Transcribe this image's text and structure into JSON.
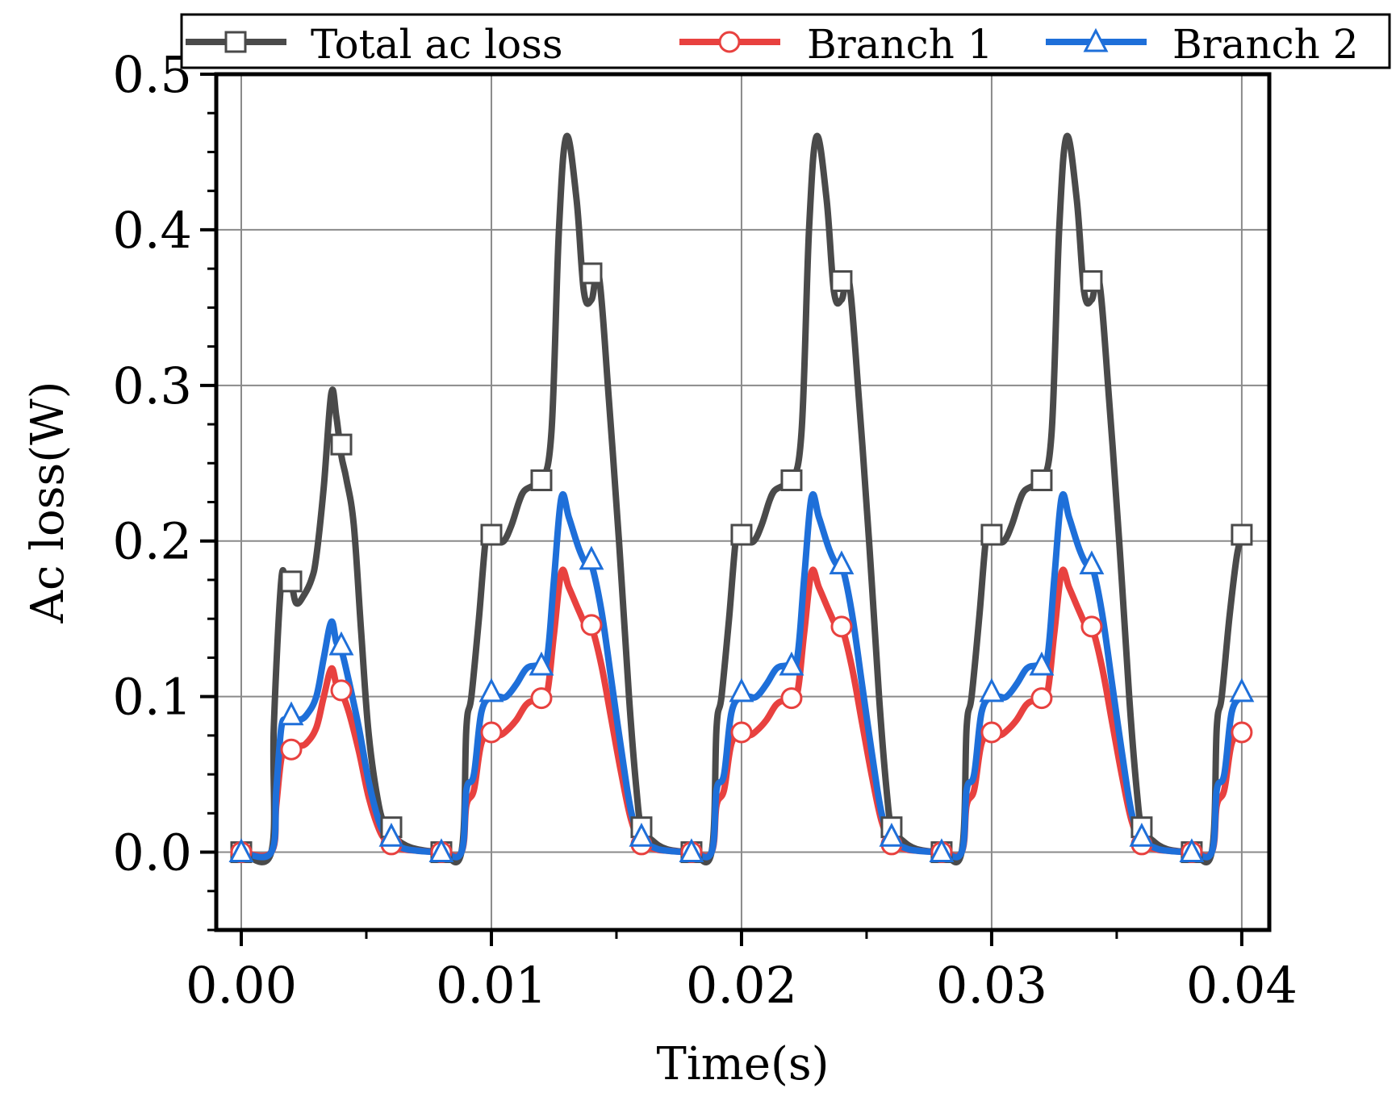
{
  "chart_data": {
    "type": "line",
    "title": "",
    "xlabel": "Time(s)",
    "ylabel": "Ac loss(W)",
    "xlim": [
      -0.001,
      0.0411
    ],
    "ylim": [
      -0.05,
      0.5
    ],
    "x_ticks": [
      0.0,
      0.01,
      0.02,
      0.03,
      0.04
    ],
    "x_tick_labels": [
      "0.00",
      "0.01",
      "0.02",
      "0.03",
      "0.04"
    ],
    "y_ticks": [
      0.0,
      0.1,
      0.2,
      0.3,
      0.4,
      0.5
    ],
    "y_tick_labels": [
      "0.0",
      "0.1",
      "0.2",
      "0.3",
      "0.4",
      "0.5"
    ],
    "grid": true,
    "legend_position": "top (above plot, one row)",
    "series": [
      {
        "name": "Total ac loss",
        "color": "#4a4a4a",
        "marker": "square",
        "x": [
          0.0,
          0.0012,
          0.0013,
          0.0016,
          0.0018,
          0.002,
          0.0022,
          0.0025,
          0.0028,
          0.003,
          0.0033,
          0.0036,
          0.0038,
          0.004,
          0.0042,
          0.0045,
          0.0048,
          0.0051,
          0.0055,
          0.0058,
          0.006,
          0.0064,
          0.007,
          0.008,
          0.0088,
          0.009,
          0.0092,
          0.0095,
          0.0098,
          0.01,
          0.0102,
          0.0105,
          0.0108,
          0.0111,
          0.0113,
          0.0116,
          0.012,
          0.0124,
          0.0127,
          0.013,
          0.0134,
          0.0137,
          0.014,
          0.0143,
          0.0147,
          0.0151,
          0.0155,
          0.0158,
          0.016,
          0.0164,
          0.017,
          0.018,
          0.0188,
          0.019,
          0.0192,
          0.0195,
          0.0198,
          0.02,
          0.0202,
          0.0205,
          0.0208,
          0.0211,
          0.0213,
          0.0216,
          0.022,
          0.0224,
          0.0227,
          0.023,
          0.0234,
          0.0237,
          0.024,
          0.0243,
          0.0247,
          0.0251,
          0.0255,
          0.0258,
          0.026,
          0.0264,
          0.027,
          0.028,
          0.0288,
          0.029,
          0.0292,
          0.0295,
          0.0298,
          0.03,
          0.0302,
          0.0305,
          0.0308,
          0.0311,
          0.0313,
          0.0316,
          0.032,
          0.0324,
          0.0327,
          0.033,
          0.0334,
          0.0337,
          0.034,
          0.0343,
          0.0347,
          0.0351,
          0.0355,
          0.0358,
          0.036,
          0.0364,
          0.037,
          0.038,
          0.0388,
          0.039,
          0.0392,
          0.0395,
          0.0398,
          0.04
        ],
        "y": [
          0.0,
          0.0,
          0.08,
          0.175,
          0.17,
          0.172,
          0.16,
          0.165,
          0.175,
          0.19,
          0.235,
          0.295,
          0.28,
          0.255,
          0.24,
          0.21,
          0.14,
          0.075,
          0.03,
          0.016,
          0.012,
          0.006,
          0.002,
          0.0,
          0.0,
          0.08,
          0.1,
          0.15,
          0.205,
          0.203,
          0.2,
          0.2,
          0.21,
          0.225,
          0.232,
          0.235,
          0.238,
          0.27,
          0.4,
          0.46,
          0.42,
          0.36,
          0.355,
          0.37,
          0.29,
          0.2,
          0.1,
          0.04,
          0.016,
          0.008,
          0.002,
          0.0,
          0.0,
          0.08,
          0.1,
          0.15,
          0.205,
          0.203,
          0.2,
          0.2,
          0.21,
          0.225,
          0.232,
          0.235,
          0.238,
          0.27,
          0.4,
          0.46,
          0.42,
          0.36,
          0.355,
          0.367,
          0.29,
          0.2,
          0.1,
          0.04,
          0.016,
          0.008,
          0.002,
          0.0,
          0.0,
          0.08,
          0.1,
          0.15,
          0.205,
          0.203,
          0.2,
          0.2,
          0.21,
          0.225,
          0.232,
          0.235,
          0.238,
          0.27,
          0.4,
          0.46,
          0.42,
          0.36,
          0.355,
          0.367,
          0.29,
          0.2,
          0.1,
          0.04,
          0.016,
          0.008,
          0.002,
          0.0,
          0.0,
          0.08,
          0.1,
          0.15,
          0.19,
          0.203
        ],
        "marker_x": [
          0.0,
          0.002,
          0.004,
          0.006,
          0.008,
          0.01,
          0.012,
          0.014,
          0.016,
          0.018,
          0.02,
          0.022,
          0.024,
          0.026,
          0.028,
          0.03,
          0.032,
          0.034,
          0.036,
          0.038,
          0.04
        ],
        "marker_y": [
          0.0,
          0.174,
          0.262,
          0.016,
          0.0,
          0.204,
          0.239,
          0.372,
          0.016,
          0.0,
          0.204,
          0.239,
          0.367,
          0.016,
          0.0,
          0.204,
          0.239,
          0.367,
          0.016,
          0.0,
          0.204
        ]
      },
      {
        "name": "Branch 1",
        "color": "#e8413f",
        "marker": "circle",
        "x": [
          0.0,
          0.0012,
          0.0014,
          0.0016,
          0.0018,
          0.002,
          0.0023,
          0.0026,
          0.003,
          0.0033,
          0.0036,
          0.0038,
          0.004,
          0.0043,
          0.0047,
          0.0051,
          0.0055,
          0.0058,
          0.006,
          0.0064,
          0.007,
          0.008,
          0.0088,
          0.009,
          0.0093,
          0.0096,
          0.01,
          0.0103,
          0.0106,
          0.011,
          0.0114,
          0.0118,
          0.0122,
          0.0125,
          0.0128,
          0.0131,
          0.0135,
          0.0138,
          0.014,
          0.0144,
          0.0148,
          0.0152,
          0.0156,
          0.016,
          0.0165,
          0.017,
          0.018,
          0.0188,
          0.019,
          0.0193,
          0.0196,
          0.02,
          0.0203,
          0.0206,
          0.021,
          0.0214,
          0.0218,
          0.0222,
          0.0225,
          0.0228,
          0.0231,
          0.0235,
          0.0238,
          0.024,
          0.0244,
          0.0248,
          0.0252,
          0.0256,
          0.026,
          0.0265,
          0.027,
          0.028,
          0.0288,
          0.029,
          0.0293,
          0.0296,
          0.03,
          0.0303,
          0.0306,
          0.031,
          0.0314,
          0.0318,
          0.0322,
          0.0325,
          0.0328,
          0.0331,
          0.0335,
          0.0338,
          0.034,
          0.0344,
          0.0348,
          0.0352,
          0.0356,
          0.036,
          0.0365,
          0.037,
          0.038,
          0.0388,
          0.039,
          0.0393,
          0.0396,
          0.04
        ],
        "y": [
          0.0,
          0.0,
          0.03,
          0.06,
          0.065,
          0.065,
          0.068,
          0.07,
          0.08,
          0.1,
          0.118,
          0.108,
          0.103,
          0.09,
          0.065,
          0.035,
          0.015,
          0.007,
          0.005,
          0.002,
          0.001,
          0.0,
          0.0,
          0.03,
          0.04,
          0.07,
          0.077,
          0.075,
          0.078,
          0.085,
          0.095,
          0.098,
          0.1,
          0.14,
          0.18,
          0.17,
          0.155,
          0.145,
          0.145,
          0.12,
          0.085,
          0.05,
          0.02,
          0.006,
          0.002,
          0.001,
          0.0,
          0.0,
          0.03,
          0.04,
          0.07,
          0.077,
          0.075,
          0.078,
          0.085,
          0.095,
          0.098,
          0.1,
          0.14,
          0.18,
          0.17,
          0.155,
          0.145,
          0.145,
          0.12,
          0.085,
          0.05,
          0.02,
          0.006,
          0.002,
          0.001,
          0.0,
          0.0,
          0.03,
          0.04,
          0.07,
          0.077,
          0.075,
          0.078,
          0.085,
          0.095,
          0.098,
          0.1,
          0.14,
          0.18,
          0.17,
          0.155,
          0.145,
          0.145,
          0.12,
          0.085,
          0.05,
          0.02,
          0.006,
          0.002,
          0.001,
          0.0,
          0.0,
          0.03,
          0.04,
          0.07,
          0.077
        ],
        "marker_x": [
          0.0,
          0.002,
          0.004,
          0.006,
          0.008,
          0.01,
          0.012,
          0.014,
          0.016,
          0.018,
          0.02,
          0.022,
          0.024,
          0.026,
          0.028,
          0.03,
          0.032,
          0.034,
          0.036,
          0.038,
          0.04
        ],
        "marker_y": [
          0.0,
          0.066,
          0.104,
          0.005,
          0.0,
          0.077,
          0.099,
          0.146,
          0.005,
          0.0,
          0.077,
          0.099,
          0.145,
          0.005,
          0.0,
          0.077,
          0.099,
          0.145,
          0.005,
          0.0,
          0.077
        ]
      },
      {
        "name": "Branch 2",
        "color": "#1e6fd9",
        "marker": "triangle",
        "x": [
          0.0,
          0.0012,
          0.0014,
          0.0016,
          0.0018,
          0.002,
          0.0023,
          0.0026,
          0.003,
          0.0033,
          0.0036,
          0.0038,
          0.004,
          0.0043,
          0.0047,
          0.0051,
          0.0055,
          0.0058,
          0.006,
          0.0064,
          0.007,
          0.008,
          0.0088,
          0.009,
          0.0093,
          0.0096,
          0.01,
          0.0103,
          0.0106,
          0.011,
          0.0114,
          0.0118,
          0.0122,
          0.0125,
          0.0128,
          0.0131,
          0.0135,
          0.0138,
          0.014,
          0.0144,
          0.0148,
          0.0152,
          0.0156,
          0.016,
          0.0165,
          0.017,
          0.018,
          0.0188,
          0.019,
          0.0193,
          0.0196,
          0.02,
          0.0203,
          0.0206,
          0.021,
          0.0214,
          0.0218,
          0.0222,
          0.0225,
          0.0228,
          0.0231,
          0.0235,
          0.0238,
          0.024,
          0.0244,
          0.0248,
          0.0252,
          0.0256,
          0.026,
          0.0265,
          0.027,
          0.028,
          0.0288,
          0.029,
          0.0293,
          0.0296,
          0.03,
          0.0303,
          0.0306,
          0.031,
          0.0314,
          0.0318,
          0.0322,
          0.0325,
          0.0328,
          0.0331,
          0.0335,
          0.0338,
          0.034,
          0.0344,
          0.0348,
          0.0352,
          0.0356,
          0.036,
          0.0365,
          0.037,
          0.038,
          0.0388,
          0.039,
          0.0393,
          0.0396,
          0.04
        ],
        "y": [
          0.0,
          0.0,
          0.04,
          0.08,
          0.085,
          0.085,
          0.085,
          0.088,
          0.1,
          0.125,
          0.148,
          0.135,
          0.13,
          0.11,
          0.08,
          0.045,
          0.02,
          0.01,
          0.008,
          0.003,
          0.001,
          0.0,
          0.0,
          0.04,
          0.05,
          0.09,
          0.1,
          0.1,
          0.1,
          0.108,
          0.118,
          0.12,
          0.122,
          0.175,
          0.228,
          0.215,
          0.195,
          0.185,
          0.185,
          0.155,
          0.11,
          0.065,
          0.025,
          0.008,
          0.003,
          0.001,
          0.0,
          0.0,
          0.04,
          0.05,
          0.09,
          0.1,
          0.1,
          0.1,
          0.108,
          0.118,
          0.12,
          0.122,
          0.175,
          0.228,
          0.215,
          0.195,
          0.185,
          0.185,
          0.155,
          0.11,
          0.065,
          0.025,
          0.008,
          0.003,
          0.001,
          0.0,
          0.0,
          0.04,
          0.05,
          0.09,
          0.1,
          0.1,
          0.1,
          0.108,
          0.118,
          0.12,
          0.122,
          0.175,
          0.228,
          0.215,
          0.195,
          0.185,
          0.185,
          0.155,
          0.11,
          0.065,
          0.025,
          0.008,
          0.003,
          0.001,
          0.0,
          0.0,
          0.04,
          0.05,
          0.09,
          0.1
        ],
        "marker_x": [
          0.0,
          0.002,
          0.004,
          0.006,
          0.008,
          0.01,
          0.012,
          0.014,
          0.016,
          0.018,
          0.02,
          0.022,
          0.024,
          0.026,
          0.028,
          0.03,
          0.032,
          0.034,
          0.036,
          0.038,
          0.04
        ],
        "marker_y": [
          0.0,
          0.088,
          0.133,
          0.01,
          0.0,
          0.103,
          0.12,
          0.188,
          0.01,
          0.0,
          0.103,
          0.12,
          0.185,
          0.01,
          0.0,
          0.103,
          0.12,
          0.185,
          0.01,
          0.0,
          0.103
        ]
      }
    ]
  }
}
